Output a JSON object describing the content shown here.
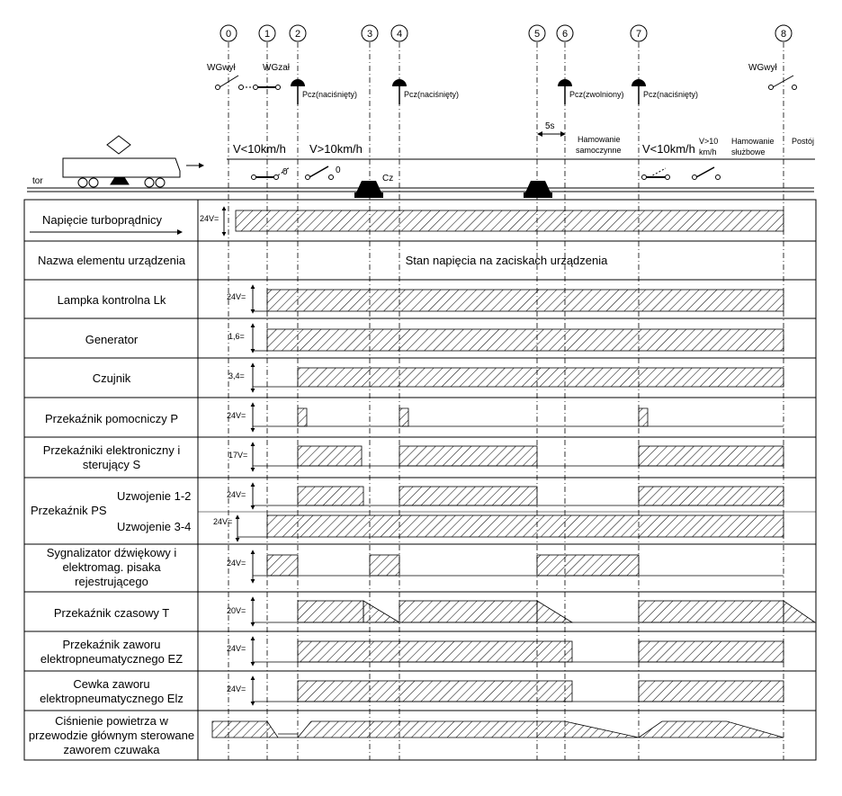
{
  "points": [
    "0",
    "1",
    "2",
    "3",
    "4",
    "5",
    "6",
    "7",
    "8"
  ],
  "top": {
    "wg_wyl": "WGwył",
    "wg_zal": "WGzał",
    "wg_wyl_end": "WGwył",
    "pcz_pressed": "Pcz(naciśnięty)",
    "pcz_released": "Pcz(zwolniony)",
    "five_s": "5s",
    "v_lt_10": "V<10km/h",
    "v_gt_10": "V>10km/h",
    "zero_a": "0",
    "zero_b": "0",
    "cz": "Cz",
    "tor": "tor",
    "ham_samo_1": "Hamowanie",
    "ham_samo_2": "samoczynne",
    "v_gt_10_b1": "V>10",
    "v_gt_10_b2": "km/h",
    "ham_sluz_1": "Hamowanie",
    "ham_sluz_2": "służbowe",
    "postoj": "Postój"
  },
  "rows": {
    "turbo": {
      "label": "Napięcie turboprądnicy",
      "voltage": "24V="
    },
    "header": {
      "label": "Nazwa elementu urządzenia",
      "state": "Stan napięcia na zaciskach urządzenia"
    },
    "lk": {
      "label": "Lampka kontrolna Lk",
      "voltage": "24V="
    },
    "gen": {
      "label": "Generator",
      "voltage": "1,6="
    },
    "czujnik": {
      "label": "Czujnik",
      "voltage": "3,4="
    },
    "p": {
      "label": "Przekaźnik pomocniczy P",
      "voltage": "24V="
    },
    "s": {
      "label_1": "Przekaźniki elektroniczny i",
      "label_2": "sterujący S",
      "voltage": "17V="
    },
    "ps": {
      "label": "Przekaźnik PS",
      "sub_1": "Uzwojenie 1-2",
      "sub_2": "Uzwojenie 3-4",
      "voltage_1": "24V=",
      "voltage_2": "24V="
    },
    "syg": {
      "label_1": "Sygnalizator dźwiękowy i",
      "label_2": "elektromag. pisaka",
      "label_3": "rejestrującego",
      "voltage": "24V="
    },
    "t": {
      "label": "Przekaźnik czasowy T",
      "voltage": "20V="
    },
    "ez": {
      "label_1": "Przekaźnik zaworu",
      "label_2": "elektropneumatycznego EZ",
      "voltage": "24V="
    },
    "elz": {
      "label_1": "Cewka zaworu",
      "label_2": "elektropneumatycznego Elz",
      "voltage": "24V="
    },
    "cisn": {
      "label_1": "Ciśnienie powietrza w",
      "label_2": "przewodzie głównym sterowane",
      "label_3": "zaworem czuwaka"
    }
  }
}
